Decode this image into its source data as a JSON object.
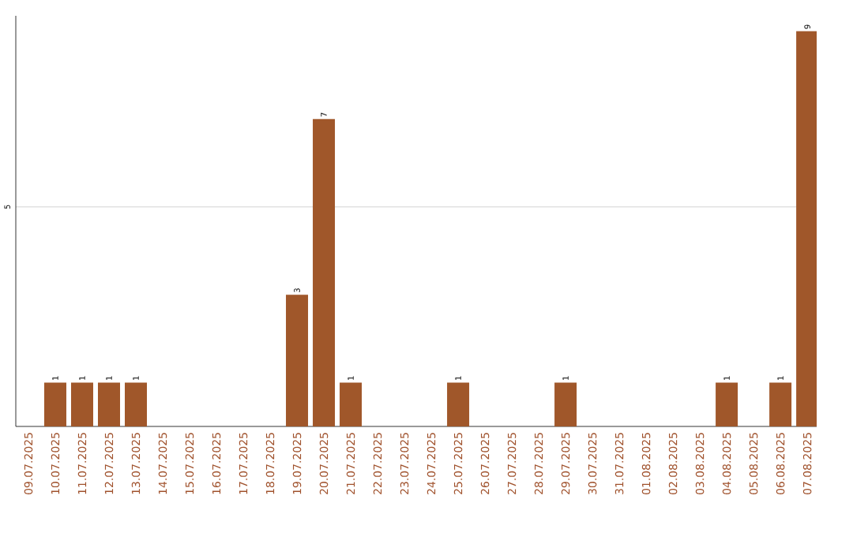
{
  "chart_data": {
    "type": "bar",
    "categories": [
      "09.07.2025",
      "10.07.2025",
      "11.07.2025",
      "12.07.2025",
      "13.07.2025",
      "14.07.2025",
      "15.07.2025",
      "16.07.2025",
      "17.07.2025",
      "18.07.2025",
      "19.07.2025",
      "20.07.2025",
      "21.07.2025",
      "22.07.2025",
      "23.07.2025",
      "24.07.2025",
      "25.07.2025",
      "26.07.2025",
      "27.07.2025",
      "28.07.2025",
      "29.07.2025",
      "30.07.2025",
      "31.07.2025",
      "01.08.2025",
      "02.08.2025",
      "03.08.2025",
      "04.08.2025",
      "05.08.2025",
      "06.08.2025",
      "07.08.2025"
    ],
    "values": [
      0,
      1,
      1,
      1,
      1,
      0,
      0,
      0,
      0,
      0,
      3,
      7,
      1,
      0,
      0,
      0,
      1,
      0,
      0,
      0,
      1,
      0,
      0,
      0,
      0,
      0,
      1,
      0,
      1,
      9
    ],
    "value_labels": [
      null,
      "1",
      "1",
      "1",
      "1",
      null,
      null,
      null,
      null,
      null,
      "3",
      "7",
      "1",
      null,
      null,
      null,
      "1",
      null,
      null,
      null,
      "1",
      null,
      null,
      null,
      null,
      null,
      "1",
      null,
      "1",
      "9"
    ],
    "color": "#a0572a",
    "ylim": [
      0,
      9.35
    ],
    "yticks": [
      5
    ],
    "grid": "y"
  }
}
